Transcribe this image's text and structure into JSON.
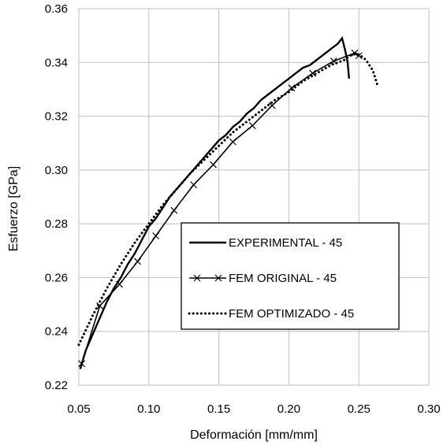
{
  "chart_data": {
    "type": "line",
    "title": "",
    "xlabel": "Deformación [mm/mm]",
    "ylabel": "Esfuerzo [GPa]",
    "xlim": [
      0.05,
      0.3
    ],
    "ylim": [
      0.22,
      0.36
    ],
    "xticks": [
      0.05,
      0.1,
      0.15,
      0.2,
      0.25,
      0.3
    ],
    "yticks": [
      0.22,
      0.24,
      0.26,
      0.28,
      0.3,
      0.32,
      0.34,
      0.36
    ],
    "xtick_labels": [
      "0.05",
      "0.10",
      "0.15",
      "0.20",
      "0.25",
      "0.30"
    ],
    "ytick_labels": [
      "0.22",
      "0.24",
      "0.26",
      "0.28",
      "0.30",
      "0.32",
      "0.34",
      "0.36"
    ],
    "grid": true,
    "legend_position": "center-right",
    "series": [
      {
        "name": "EXPERIMENTAL - 45",
        "style": "solid",
        "x": [
          0.051,
          0.055,
          0.06,
          0.065,
          0.07,
          0.075,
          0.08,
          0.085,
          0.09,
          0.095,
          0.1,
          0.105,
          0.11,
          0.115,
          0.12,
          0.125,
          0.13,
          0.135,
          0.14,
          0.145,
          0.15,
          0.155,
          0.16,
          0.165,
          0.17,
          0.175,
          0.18,
          0.185,
          0.19,
          0.195,
          0.2,
          0.205,
          0.21,
          0.215,
          0.22,
          0.225,
          0.23,
          0.235,
          0.238,
          0.24,
          0.242,
          0.243
        ],
        "y": [
          0.226,
          0.233,
          0.239,
          0.245,
          0.251,
          0.256,
          0.26,
          0.265,
          0.269,
          0.274,
          0.279,
          0.282,
          0.286,
          0.29,
          0.293,
          0.296,
          0.299,
          0.302,
          0.305,
          0.308,
          0.311,
          0.313,
          0.316,
          0.318,
          0.321,
          0.323,
          0.326,
          0.328,
          0.33,
          0.332,
          0.334,
          0.336,
          0.338,
          0.339,
          0.341,
          0.343,
          0.345,
          0.347,
          0.349,
          0.345,
          0.34,
          0.334
        ]
      },
      {
        "name": "FEM ORIGINAL - 45",
        "style": "solid-x-markers",
        "x": [
          0.052,
          0.065,
          0.079,
          0.092,
          0.105,
          0.118,
          0.132,
          0.146,
          0.16,
          0.174,
          0.188,
          0.202,
          0.217,
          0.232,
          0.247,
          0.25
        ],
        "y": [
          0.228,
          0.2495,
          0.2575,
          0.266,
          0.2755,
          0.285,
          0.2945,
          0.302,
          0.3105,
          0.3165,
          0.324,
          0.3305,
          0.336,
          0.3405,
          0.3435,
          0.3425
        ]
      },
      {
        "name": "FEM OPTIMIZADO - 45",
        "style": "dotted",
        "x": [
          0.05,
          0.06,
          0.07,
          0.08,
          0.09,
          0.1,
          0.11,
          0.12,
          0.13,
          0.14,
          0.15,
          0.16,
          0.17,
          0.18,
          0.19,
          0.2,
          0.21,
          0.22,
          0.23,
          0.24,
          0.245,
          0.25,
          0.255,
          0.26,
          0.263
        ],
        "y": [
          0.235,
          0.246,
          0.256,
          0.265,
          0.273,
          0.28,
          0.287,
          0.293,
          0.299,
          0.304,
          0.309,
          0.314,
          0.318,
          0.322,
          0.326,
          0.329,
          0.333,
          0.336,
          0.339,
          0.341,
          0.343,
          0.343,
          0.341,
          0.337,
          0.332
        ]
      }
    ]
  }
}
